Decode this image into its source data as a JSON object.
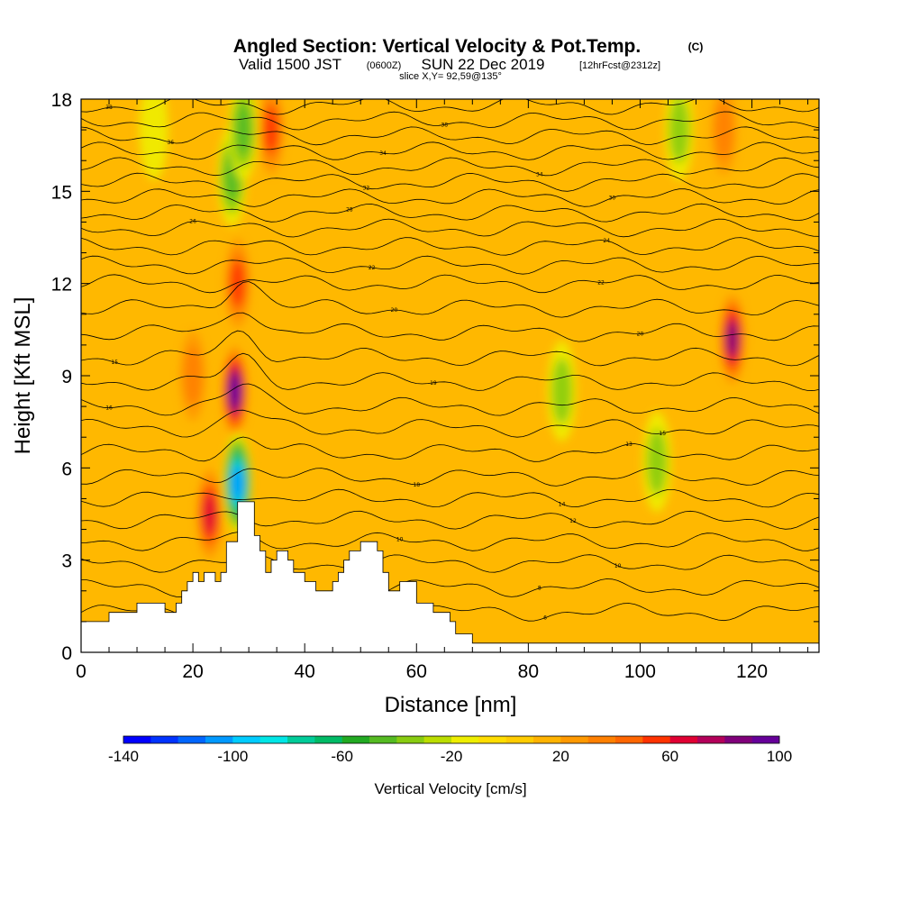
{
  "title": {
    "main": "Angled Section: Vertical Velocity & Pot.Temp.",
    "unit": "(C)",
    "valid_prefix": "Valid 1500 JST",
    "valid_z": "(0600Z)",
    "valid_date": "SUN 22 Dec 2019",
    "forecast": "[12hrFcst@2312z]",
    "slice": "slice X,Y= 92,59@135°"
  },
  "chart_data": {
    "type": "heatmap",
    "xlabel": "Distance [nm]",
    "ylabel": "Height [Kft MSL]",
    "xlim": [
      0,
      132
    ],
    "ylim": [
      0,
      18
    ],
    "x_ticks": [
      0,
      20,
      40,
      60,
      80,
      100,
      120
    ],
    "y_ticks": [
      0,
      3,
      6,
      9,
      12,
      15,
      18
    ],
    "colorbar": {
      "label": "Vertical Velocity [cm/s]",
      "min": -140,
      "max": 100,
      "step": 10,
      "tick_values": [
        -140,
        -100,
        -60,
        -20,
        20,
        60,
        100
      ],
      "colors": [
        "#0000ff",
        "#0033ff",
        "#0066ff",
        "#0099ff",
        "#00ccff",
        "#00e6e6",
        "#00cc99",
        "#00bb66",
        "#22aa22",
        "#55bb22",
        "#88cc11",
        "#bbdd00",
        "#eeee00",
        "#ffdd00",
        "#ffcc00",
        "#ffb300",
        "#ff9900",
        "#ff8000",
        "#ff6600",
        "#ff3300",
        "#e00033",
        "#b3005a",
        "#80007a",
        "#660099"
      ]
    },
    "velocity_features": [
      {
        "kind": "updraft",
        "x": 23,
        "y": 4.5,
        "peak": 70
      },
      {
        "kind": "updraft",
        "x": 27.5,
        "y": 8.5,
        "peak": 100
      },
      {
        "kind": "updraft",
        "x": 28,
        "y": 12,
        "peak": 60
      },
      {
        "kind": "updraft",
        "x": 34,
        "y": 17,
        "peak": 50
      },
      {
        "kind": "updraft",
        "x": 116.5,
        "y": 10.2,
        "peak": 80
      },
      {
        "kind": "updraft",
        "x": 115,
        "y": 17,
        "peak": 40
      },
      {
        "kind": "updraft",
        "x": 20,
        "y": 9,
        "peak": 40
      },
      {
        "kind": "downdraft",
        "x": 28,
        "y": 5.5,
        "peak": -110
      },
      {
        "kind": "downdraft",
        "x": 27,
        "y": 15.5,
        "peak": -60
      },
      {
        "kind": "downdraft",
        "x": 29,
        "y": 17,
        "peak": -55
      },
      {
        "kind": "downdraft",
        "x": 107,
        "y": 17,
        "peak": -45
      },
      {
        "kind": "downdraft",
        "x": 86,
        "y": 8.5,
        "peak": -35
      },
      {
        "kind": "downdraft",
        "x": 103,
        "y": 6.2,
        "peak": -35
      },
      {
        "kind": "downdraft",
        "x": 13,
        "y": 17,
        "peak": -30
      }
    ],
    "terrain": [
      [
        0,
        1
      ],
      [
        5,
        1
      ],
      [
        5,
        1.3
      ],
      [
        10,
        1.3
      ],
      [
        10,
        1.6
      ],
      [
        15,
        1.6
      ],
      [
        15,
        1.3
      ],
      [
        17,
        1.3
      ],
      [
        17,
        1.6
      ],
      [
        18,
        1.6
      ],
      [
        18,
        2
      ],
      [
        19,
        2
      ],
      [
        19,
        2.3
      ],
      [
        20,
        2.3
      ],
      [
        20,
        2.6
      ],
      [
        21,
        2.6
      ],
      [
        21,
        2.3
      ],
      [
        22,
        2.3
      ],
      [
        22,
        2.6
      ],
      [
        24,
        2.6
      ],
      [
        24,
        2.3
      ],
      [
        25,
        2.3
      ],
      [
        25,
        2.6
      ],
      [
        26,
        2.6
      ],
      [
        26,
        3.6
      ],
      [
        28,
        3.6
      ],
      [
        28,
        4.9
      ],
      [
        31,
        4.9
      ],
      [
        31,
        3.8
      ],
      [
        32,
        3.8
      ],
      [
        32,
        3.3
      ],
      [
        33,
        3.3
      ],
      [
        33,
        2.6
      ],
      [
        34,
        2.6
      ],
      [
        34,
        3
      ],
      [
        35,
        3
      ],
      [
        35,
        3.3
      ],
      [
        37,
        3.3
      ],
      [
        37,
        3
      ],
      [
        38,
        3
      ],
      [
        38,
        2.6
      ],
      [
        40,
        2.6
      ],
      [
        40,
        2.3
      ],
      [
        42,
        2.3
      ],
      [
        42,
        2
      ],
      [
        45,
        2
      ],
      [
        45,
        2.3
      ],
      [
        46,
        2.3
      ],
      [
        46,
        2.6
      ],
      [
        47,
        2.6
      ],
      [
        47,
        3
      ],
      [
        48,
        3
      ],
      [
        48,
        3.3
      ],
      [
        50,
        3.3
      ],
      [
        50,
        3.6
      ],
      [
        53,
        3.6
      ],
      [
        53,
        3.3
      ],
      [
        54,
        3.3
      ],
      [
        54,
        2.6
      ],
      [
        55,
        2.6
      ],
      [
        55,
        2
      ],
      [
        57,
        2
      ],
      [
        57,
        2.3
      ],
      [
        60,
        2.3
      ],
      [
        60,
        1.6
      ],
      [
        63,
        1.6
      ],
      [
        63,
        1.3
      ],
      [
        66,
        1.3
      ],
      [
        66,
        1
      ],
      [
        67,
        1
      ],
      [
        67,
        0.6
      ],
      [
        70,
        0.6
      ],
      [
        70,
        0.3
      ],
      [
        132,
        0.3
      ]
    ],
    "theta_contours": [
      {
        "base": 1.3,
        "label": "6",
        "lx": 83
      },
      {
        "base": 2.1,
        "label": "8",
        "lx": 82
      },
      {
        "base": 2.9,
        "label": "10",
        "lx": 96
      },
      {
        "base": 3.6,
        "label": "10",
        "lx": 57
      },
      {
        "base": 4.3,
        "label": "12",
        "lx": 88
      },
      {
        "base": 5.0,
        "label": "14",
        "lx": 86
      },
      {
        "base": 5.7,
        "label": "18",
        "lx": 60
      },
      {
        "base": 6.5,
        "label": "13",
        "lx": 98
      },
      {
        "base": 7.3,
        "label": "15",
        "lx": 104
      },
      {
        "base": 8.0,
        "label": "16",
        "lx": 5
      },
      {
        "base": 8.8,
        "label": "19",
        "lx": 63
      },
      {
        "base": 9.6,
        "label": "15",
        "lx": 6
      },
      {
        "base": 10.4,
        "label": "20",
        "lx": 100
      },
      {
        "base": 11.2,
        "label": "20",
        "lx": 56
      },
      {
        "base": 12.0,
        "label": "22",
        "lx": 93
      },
      {
        "base": 12.6,
        "label": "22",
        "lx": 52
      },
      {
        "base": 13.2,
        "label": "24",
        "lx": 94
      },
      {
        "base": 13.8,
        "label": "26",
        "lx": 20
      },
      {
        "base": 14.3,
        "label": "28",
        "lx": 48
      },
      {
        "base": 14.8,
        "label": "30",
        "lx": 95
      },
      {
        "base": 15.3,
        "label": "32",
        "lx": 51
      },
      {
        "base": 15.8,
        "label": "34",
        "lx": 82
      },
      {
        "base": 16.3,
        "label": "34",
        "lx": 54
      },
      {
        "base": 16.8,
        "label": "36",
        "lx": 16
      },
      {
        "base": 17.3,
        "label": "38",
        "lx": 65
      },
      {
        "base": 17.8,
        "label": "38",
        "lx": 5
      }
    ]
  }
}
